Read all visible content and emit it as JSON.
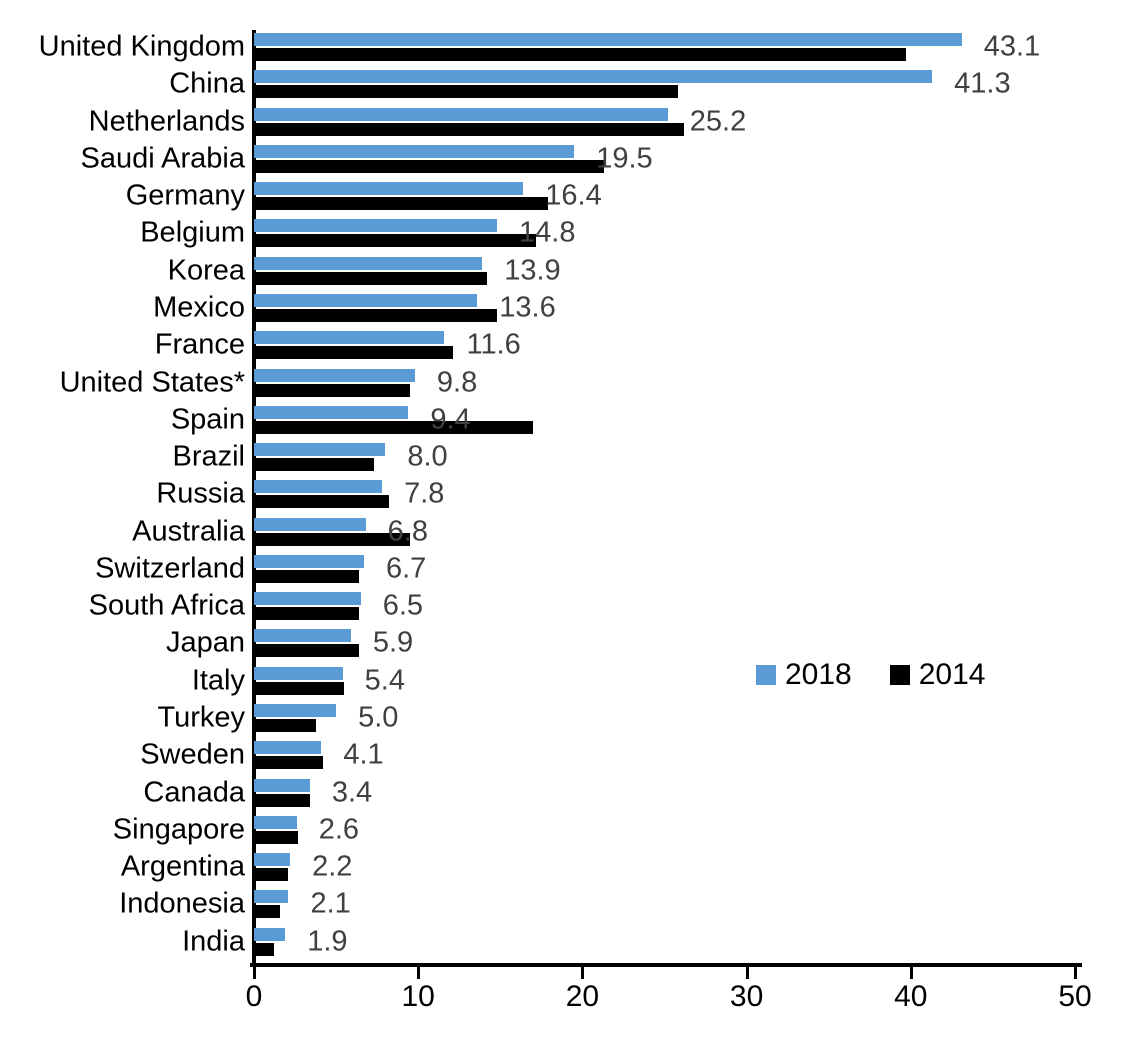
{
  "chart_data": {
    "type": "bar",
    "orientation": "horizontal",
    "title": "",
    "xlabel": "",
    "ylabel": "",
    "xlim": [
      0,
      50
    ],
    "xticks": [
      0,
      10,
      20,
      30,
      40,
      50
    ],
    "grid": false,
    "legend_position": "middle-right",
    "categories": [
      "United Kingdom",
      "China",
      "Netherlands",
      "Saudi Arabia",
      "Germany",
      "Belgium",
      "Korea",
      "Mexico",
      "France",
      "United States*",
      "Spain",
      "Brazil",
      "Russia",
      "Australia",
      "Switzerland",
      "South Africa",
      "Japan",
      "Italy",
      "Turkey",
      "Sweden",
      "Canada",
      "Singapore",
      "Argentina",
      "Indonesia",
      "India"
    ],
    "series": [
      {
        "name": "2018",
        "color": "#5B9BD5",
        "values": [
          43.1,
          41.3,
          25.2,
          19.5,
          16.4,
          14.8,
          13.9,
          13.6,
          11.6,
          9.8,
          9.4,
          8.0,
          7.8,
          6.8,
          6.7,
          6.5,
          5.9,
          5.4,
          5.0,
          4.1,
          3.4,
          2.6,
          2.2,
          2.1,
          1.9
        ],
        "data_labels": [
          "43.1",
          "41.3",
          "25.2",
          "19.5",
          "16.4",
          "14.8",
          "13.9",
          "13.6",
          "11.6",
          "9.8",
          "9.4",
          "8.0",
          "7.8",
          "6.8",
          "6.7",
          "6.5",
          "5.9",
          "5.4",
          "5.0",
          "4.1",
          "3.4",
          "2.6",
          "2.2",
          "2.1",
          "1.9"
        ]
      },
      {
        "name": "2014",
        "color": "#000000",
        "values": [
          39.7,
          25.8,
          26.2,
          21.3,
          17.9,
          17.2,
          14.2,
          14.8,
          12.1,
          9.5,
          17.0,
          7.3,
          8.2,
          9.5,
          6.4,
          6.4,
          6.4,
          5.5,
          3.8,
          4.2,
          3.4,
          2.7,
          2.1,
          1.6,
          1.2
        ],
        "data_labels": []
      }
    ],
    "value_label_color": "#404040"
  },
  "axis": {
    "tick_labels": [
      "0",
      "10",
      "20",
      "30",
      "40",
      "50"
    ]
  },
  "legend": {
    "items": [
      {
        "label": "2018",
        "color": "#5B9BD5"
      },
      {
        "label": "2014",
        "color": "#000000"
      }
    ]
  }
}
